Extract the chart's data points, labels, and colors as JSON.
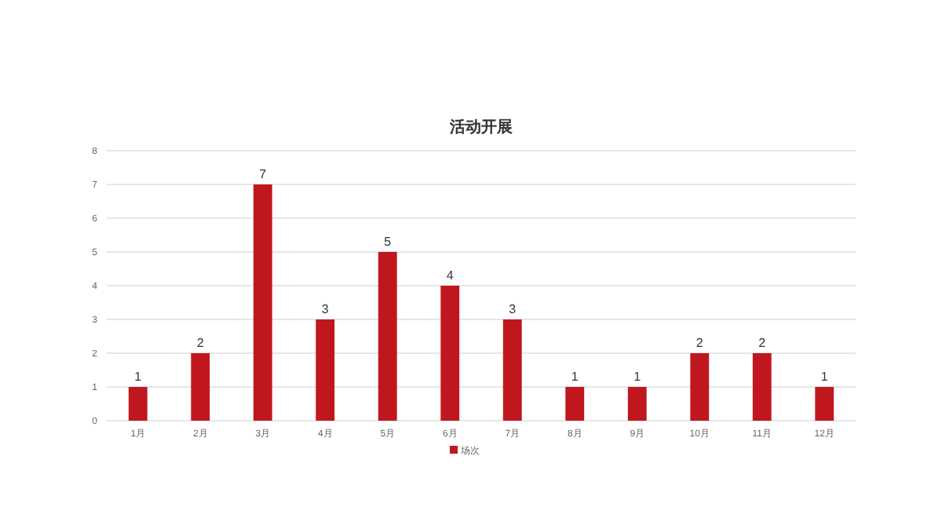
{
  "chart_data": {
    "type": "bar",
    "title": "活动开展",
    "categories": [
      "1月",
      "2月",
      "3月",
      "4月",
      "5月",
      "6月",
      "7月",
      "8月",
      "9月",
      "10月",
      "11月",
      "12月"
    ],
    "series": [
      {
        "name": "场次",
        "color": "#c0171f",
        "values": [
          1,
          2,
          7,
          3,
          5,
          4,
          3,
          1,
          1,
          2,
          2,
          1
        ]
      }
    ],
    "ylim": [
      0,
      8
    ],
    "yticks": [
      0,
      1,
      2,
      3,
      4,
      5,
      6,
      7,
      8
    ],
    "grid": "y",
    "data_labels": true,
    "legend": "bottom"
  }
}
